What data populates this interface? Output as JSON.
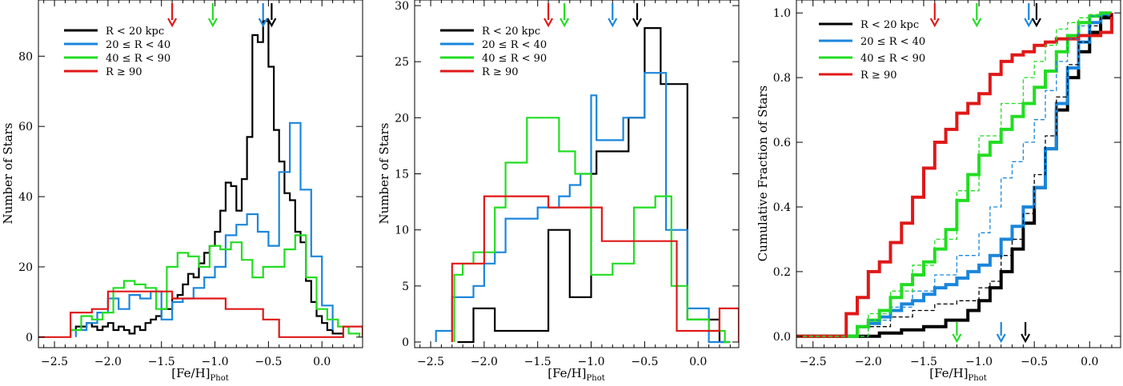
{
  "figure": {
    "panel_count": 3
  },
  "colors": {
    "black": "#000000",
    "blue": "#1a86dc",
    "green": "#22dd22",
    "red": "#e01818"
  },
  "legend": [
    "R < 20 kpc",
    "20 ≤ R < 40",
    "40 ≤ R < 90",
    "R ≥ 90"
  ],
  "chart_data": [
    {
      "type": "histogram",
      "panel": "left",
      "xlabel_main": "[Fe/H]",
      "xlabel_sub": "Phot",
      "ylabel": "Number of Stars",
      "xlim": [
        -2.65,
        0.38
      ],
      "ylim": [
        -3,
        96
      ],
      "xticks": [
        -2.5,
        -2.0,
        -1.5,
        -1.0,
        -0.5,
        0.0
      ],
      "xtick_labels": [
        "−2.5",
        "−2.0",
        "−1.5",
        "−1.0",
        "−0.5",
        "0.0"
      ],
      "yticks": [
        0,
        20,
        40,
        60,
        80
      ],
      "ytick_labels": [
        "0",
        "20",
        "40",
        "60",
        "80"
      ],
      "series": [
        {
          "name": "R < 20 kpc",
          "color": "#000000",
          "edges": [
            -2.35,
            -2.3,
            -2.25,
            -2.2,
            -2.15,
            -2.1,
            -2.05,
            -2.0,
            -1.95,
            -1.9,
            -1.85,
            -1.8,
            -1.75,
            -1.7,
            -1.65,
            -1.6,
            -1.55,
            -1.5,
            -1.45,
            -1.4,
            -1.35,
            -1.3,
            -1.25,
            -1.2,
            -1.15,
            -1.1,
            -1.05,
            -1.0,
            -0.95,
            -0.9,
            -0.85,
            -0.8,
            -0.75,
            -0.7,
            -0.65,
            -0.6,
            -0.55,
            -0.5,
            -0.45,
            -0.4,
            -0.35,
            -0.3,
            -0.25,
            -0.2,
            -0.15,
            -0.1,
            -0.05,
            0.0,
            0.05,
            0.1,
            0.15,
            0.2
          ],
          "counts": [
            2,
            3,
            3,
            4,
            3,
            2,
            3,
            4,
            2,
            3,
            2,
            1,
            3,
            2,
            4,
            5,
            6,
            8,
            8,
            11,
            12,
            15,
            18,
            17,
            21,
            24,
            26,
            30,
            36,
            44,
            43,
            36,
            45,
            57,
            86,
            84,
            90,
            77,
            59,
            50,
            41,
            39,
            30,
            27,
            16,
            10,
            6,
            4,
            2,
            1,
            1
          ]
        },
        {
          "name": "20 ≤ R < 40",
          "color": "#1a86dc",
          "edges": [
            -2.3,
            -2.2,
            -2.1,
            -2.0,
            -1.9,
            -1.8,
            -1.7,
            -1.6,
            -1.5,
            -1.4,
            -1.3,
            -1.2,
            -1.1,
            -1.0,
            -0.9,
            -0.8,
            -0.7,
            -0.6,
            -0.5,
            -0.4,
            -0.3,
            -0.2,
            -0.1,
            0.0,
            0.1
          ],
          "counts": [
            2,
            4,
            7,
            11,
            8,
            12,
            11,
            13,
            5,
            10,
            11,
            14,
            17,
            20,
            29,
            32,
            35,
            30,
            26,
            47,
            61,
            42,
            23,
            9,
            2
          ]
        },
        {
          "name": "40 ≤ R < 90",
          "color": "#22dd22",
          "edges": [
            -2.35,
            -2.25,
            -2.15,
            -2.05,
            -1.95,
            -1.85,
            -1.75,
            -1.65,
            -1.55,
            -1.45,
            -1.35,
            -1.25,
            -1.15,
            -1.05,
            -0.95,
            -0.85,
            -0.75,
            -0.65,
            -0.55,
            -0.45,
            -0.35,
            -0.25,
            -0.15,
            -0.05,
            0.05,
            0.15,
            0.25,
            0.35
          ],
          "counts": [
            2,
            6,
            5,
            7,
            14,
            16,
            15,
            14,
            8,
            20,
            24,
            23,
            20,
            26,
            25,
            27,
            22,
            17,
            20,
            20,
            25,
            29,
            17,
            8,
            5,
            3,
            1
          ]
        },
        {
          "name": "R ≥ 90",
          "color": "#e01818",
          "edges": [
            -2.65,
            -2.35,
            -2.15,
            -2.0,
            -1.85,
            -1.65,
            -1.4,
            -1.25,
            -0.9,
            -0.55,
            -0.4,
            0.05,
            0.2,
            0.38
          ],
          "counts": [
            0,
            7,
            8,
            13,
            13,
            13,
            11,
            11,
            8,
            5,
            0,
            0,
            3
          ]
        }
      ],
      "markers": [
        {
          "x": -1.4,
          "color": "#e01818",
          "position": "top"
        },
        {
          "x": -1.02,
          "color": "#22dd22",
          "position": "top"
        },
        {
          "x": -0.55,
          "color": "#1a86dc",
          "position": "top"
        },
        {
          "x": -0.47,
          "color": "#000000",
          "position": "top"
        }
      ]
    },
    {
      "type": "histogram",
      "panel": "middle",
      "xlabel_main": "[Fe/H]",
      "xlabel_sub": "Phot",
      "ylabel": "Number of Stars",
      "xlim": [
        -2.65,
        0.38
      ],
      "ylim": [
        -0.5,
        30.5
      ],
      "xticks": [
        -2.5,
        -2.0,
        -1.5,
        -1.0,
        -0.5,
        0.0
      ],
      "xtick_labels": [
        "−2.5",
        "−2.0",
        "−1.5",
        "−1.0",
        "−0.5",
        "0.0"
      ],
      "yticks": [
        0,
        5,
        10,
        15,
        20,
        25,
        30
      ],
      "ytick_labels": [
        "0",
        "5",
        "10",
        "15",
        "20",
        "25",
        "30"
      ],
      "series": [
        {
          "name": "R < 20 kpc",
          "color": "#000000",
          "edges": [
            -2.25,
            -2.1,
            -2.0,
            -1.9,
            -1.7,
            -1.5,
            -1.4,
            -1.3,
            -1.2,
            -1.1,
            -1.0,
            -0.95,
            -0.8,
            -0.65,
            -0.5,
            -0.35,
            -0.3,
            -0.1,
            -0.05,
            0.2,
            0.3
          ],
          "counts": [
            0,
            3,
            3,
            1,
            1,
            1,
            10,
            10,
            4,
            4,
            15,
            17,
            17,
            20,
            28,
            23,
            23,
            2,
            2,
            0
          ]
        },
        {
          "name": "20 ≤ R < 40",
          "color": "#1a86dc",
          "edges": [
            -2.45,
            -2.4,
            -2.3,
            -2.2,
            -2.1,
            -2.0,
            -1.9,
            -1.8,
            -1.6,
            -1.5,
            -1.4,
            -1.3,
            -1.2,
            -1.1,
            -1.0,
            -0.95,
            -0.8,
            -0.7,
            -0.6,
            -0.5,
            -0.4,
            -0.3,
            -0.1,
            0.0,
            0.1,
            0.2,
            0.3
          ],
          "counts": [
            1,
            1,
            4,
            4,
            5,
            7,
            8,
            11,
            11,
            12,
            12,
            13,
            14,
            15,
            22,
            18,
            18,
            20,
            20,
            24,
            24,
            10,
            3,
            3,
            0,
            0
          ]
        },
        {
          "name": "40 ≤ R < 90",
          "color": "#22dd22",
          "edges": [
            -2.28,
            -2.2,
            -2.1,
            -2.0,
            -1.9,
            -1.8,
            -1.6,
            -1.45,
            -1.3,
            -1.15,
            -1.0,
            -0.95,
            -0.8,
            -0.6,
            -0.4,
            -0.25,
            -0.1,
            0.0,
            0.1,
            0.2,
            0.25,
            0.3
          ],
          "counts": [
            6,
            7,
            8,
            8,
            12,
            16,
            20,
            20,
            17,
            15,
            6,
            6,
            7,
            12,
            13,
            5,
            2,
            2,
            1,
            1,
            0
          ]
        },
        {
          "name": "R ≥ 90",
          "color": "#e01818",
          "edges": [
            -2.3,
            -2.1,
            -2.0,
            -1.7,
            -1.4,
            -1.35,
            -1.2,
            -0.9,
            -0.6,
            -0.4,
            -0.2,
            0.0,
            0.1,
            0.2,
            0.38
          ],
          "counts": [
            7,
            7,
            13,
            13,
            12,
            12,
            12,
            9,
            9,
            9,
            1,
            1,
            1,
            3
          ]
        }
      ],
      "markers": [
        {
          "x": -1.4,
          "color": "#e01818",
          "position": "top"
        },
        {
          "x": -1.25,
          "color": "#22dd22",
          "position": "top"
        },
        {
          "x": -0.8,
          "color": "#1a86dc",
          "position": "top"
        },
        {
          "x": -0.57,
          "color": "#000000",
          "position": "top"
        }
      ]
    },
    {
      "type": "line",
      "subtype": "cumulative",
      "panel": "right",
      "xlabel_main": "[Fe/H]",
      "xlabel_sub": "Phot",
      "ylabel": "Cumulative Fraction of Stars",
      "xlim": [
        -2.65,
        0.28
      ],
      "ylim": [
        -0.035,
        1.04
      ],
      "xticks": [
        -2.5,
        -2.0,
        -1.5,
        -1.0,
        -0.5,
        0.0
      ],
      "xtick_labels": [
        "−2.5",
        "−2.0",
        "−1.5",
        "−1.0",
        "−0.5",
        "0.0"
      ],
      "yticks": [
        0.0,
        0.2,
        0.4,
        0.6,
        0.8,
        1.0
      ],
      "ytick_labels": [
        "0.0",
        "0.2",
        "0.4",
        "0.6",
        "0.8",
        "1.0"
      ],
      "series": [
        {
          "name": "R < 20 kpc",
          "color": "#000000",
          "style": "solid",
          "width": 4,
          "x": [
            -2.65,
            -2.1,
            -1.9,
            -1.7,
            -1.5,
            -1.3,
            -1.1,
            -1.0,
            -0.9,
            -0.8,
            -0.7,
            -0.6,
            -0.5,
            -0.4,
            -0.3,
            -0.2,
            -0.1,
            0.0,
            0.1,
            0.2
          ],
          "y": [
            0,
            0,
            0.01,
            0.02,
            0.03,
            0.05,
            0.08,
            0.11,
            0.15,
            0.2,
            0.27,
            0.35,
            0.46,
            0.58,
            0.7,
            0.8,
            0.88,
            0.94,
            0.985,
            1.0
          ]
        },
        {
          "name": "20 ≤ R < 40",
          "color": "#1a86dc",
          "style": "solid",
          "width": 4,
          "x": [
            -2.65,
            -2.25,
            -2.1,
            -2.0,
            -1.9,
            -1.8,
            -1.7,
            -1.6,
            -1.5,
            -1.4,
            -1.3,
            -1.2,
            -1.1,
            -1.0,
            -0.9,
            -0.8,
            -0.7,
            -0.6,
            -0.5,
            -0.4,
            -0.3,
            -0.2,
            -0.1,
            0.0,
            0.1,
            0.2
          ],
          "y": [
            0,
            0,
            0.03,
            0.04,
            0.06,
            0.08,
            0.1,
            0.11,
            0.13,
            0.15,
            0.16,
            0.18,
            0.2,
            0.22,
            0.25,
            0.3,
            0.34,
            0.4,
            0.46,
            0.58,
            0.72,
            0.83,
            0.91,
            0.97,
            0.995,
            1.0
          ]
        },
        {
          "name": "40 ≤ R < 90",
          "color": "#22dd22",
          "style": "solid",
          "width": 4,
          "x": [
            -2.65,
            -2.25,
            -2.1,
            -2.0,
            -1.9,
            -1.8,
            -1.7,
            -1.6,
            -1.5,
            -1.4,
            -1.3,
            -1.2,
            -1.1,
            -1.0,
            -0.9,
            -0.8,
            -0.7,
            -0.6,
            -0.5,
            -0.4,
            -0.3,
            -0.2,
            -0.1,
            0.0,
            0.1,
            0.2
          ],
          "y": [
            0,
            0,
            0.03,
            0.05,
            0.08,
            0.12,
            0.16,
            0.19,
            0.23,
            0.27,
            0.33,
            0.42,
            0.5,
            0.56,
            0.6,
            0.64,
            0.68,
            0.72,
            0.77,
            0.82,
            0.88,
            0.93,
            0.97,
            0.99,
            1.0,
            1.0
          ]
        },
        {
          "name": "R ≥ 90",
          "color": "#e01818",
          "style": "solid",
          "width": 4,
          "x": [
            -2.65,
            -2.3,
            -2.2,
            -2.1,
            -2.0,
            -1.9,
            -1.8,
            -1.7,
            -1.6,
            -1.5,
            -1.4,
            -1.3,
            -1.2,
            -1.1,
            -1.0,
            -0.9,
            -0.8,
            -0.7,
            -0.6,
            -0.5,
            -0.4,
            -0.3,
            -0.2,
            -0.1,
            0.0,
            0.1,
            0.2
          ],
          "y": [
            0,
            0,
            0.07,
            0.12,
            0.2,
            0.23,
            0.29,
            0.35,
            0.43,
            0.52,
            0.6,
            0.64,
            0.69,
            0.72,
            0.75,
            0.81,
            0.85,
            0.87,
            0.88,
            0.9,
            0.91,
            0.92,
            0.92,
            0.93,
            0.93,
            0.94,
            1.0
          ]
        },
        {
          "name": "R < 20 kpc (dashed)",
          "color": "#000000",
          "style": "dashed",
          "width": 1.3,
          "x": [
            -2.65,
            -2.25,
            -2.0,
            -1.8,
            -1.6,
            -1.4,
            -1.2,
            -1.0,
            -0.9,
            -0.8,
            -0.7,
            -0.6,
            -0.5,
            -0.4,
            -0.3,
            -0.2,
            -0.1,
            0.0,
            0.1,
            0.2
          ],
          "y": [
            0,
            0,
            0.03,
            0.06,
            0.08,
            0.1,
            0.11,
            0.15,
            0.17,
            0.25,
            0.3,
            0.38,
            0.5,
            0.62,
            0.74,
            0.84,
            0.91,
            0.96,
            0.99,
            1.0
          ]
        },
        {
          "name": "20 ≤ R < 40 (dashed)",
          "color": "#1a86dc",
          "style": "dashed",
          "width": 1.3,
          "x": [
            -2.65,
            -2.2,
            -2.0,
            -1.8,
            -1.6,
            -1.4,
            -1.2,
            -1.0,
            -0.9,
            -0.8,
            -0.7,
            -0.6,
            -0.5,
            -0.4,
            -0.3,
            -0.2,
            -0.1,
            0.0,
            0.1,
            0.2
          ],
          "y": [
            0,
            0,
            0.05,
            0.09,
            0.14,
            0.19,
            0.25,
            0.32,
            0.4,
            0.49,
            0.54,
            0.6,
            0.67,
            0.76,
            0.85,
            0.92,
            0.96,
            0.99,
            1.0,
            1.0
          ]
        },
        {
          "name": "40 ≤ R < 90 (dashed)",
          "color": "#22dd22",
          "style": "dashed",
          "width": 1.3,
          "x": [
            -2.65,
            -2.2,
            -2.0,
            -1.8,
            -1.6,
            -1.4,
            -1.2,
            -1.0,
            -0.8,
            -0.6,
            -0.5,
            -0.4,
            -0.3,
            -0.2,
            -0.1,
            0.0,
            0.1,
            0.2
          ],
          "y": [
            0,
            0,
            0.07,
            0.14,
            0.22,
            0.3,
            0.45,
            0.62,
            0.72,
            0.8,
            0.85,
            0.9,
            0.95,
            0.97,
            0.985,
            0.995,
            1.0,
            1.0
          ]
        }
      ],
      "markers": [
        {
          "x": -1.4,
          "color": "#e01818",
          "position": "top"
        },
        {
          "x": -1.02,
          "color": "#22dd22",
          "position": "top"
        },
        {
          "x": -0.55,
          "color": "#1a86dc",
          "position": "top"
        },
        {
          "x": -0.48,
          "color": "#000000",
          "position": "top"
        },
        {
          "x": -1.2,
          "color": "#22dd22",
          "position": "bottom"
        },
        {
          "x": -0.8,
          "color": "#1a86dc",
          "position": "bottom"
        },
        {
          "x": -0.58,
          "color": "#000000",
          "position": "bottom"
        }
      ]
    }
  ]
}
